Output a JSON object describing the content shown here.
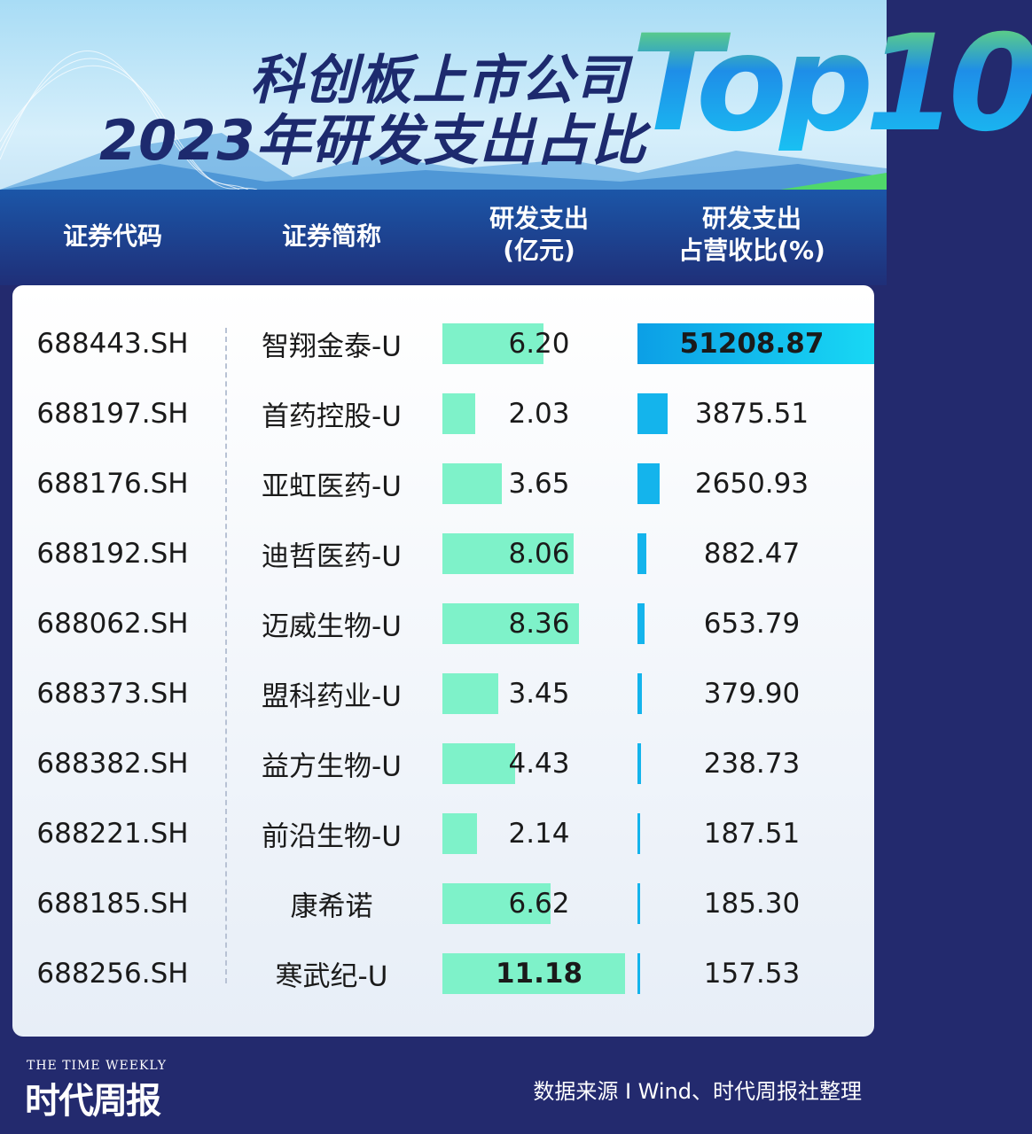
{
  "header": {
    "title_line1": "科创板上市公司",
    "title_line2": "2023年研发支出占比",
    "title_badge": "Top10"
  },
  "colors": {
    "rd_bar": "#7ef2c9",
    "ratio_bar": "#14b4ec",
    "ratio_bar_top": "#18d8f4",
    "navy": "#232a6e"
  },
  "chart_data": {
    "type": "table",
    "columns": [
      "证券代码",
      "证券简称",
      "研发支出\n(亿元)",
      "研发支出\n占营收比(%)"
    ],
    "column_labels": {
      "code": "证券代码",
      "name": "证券简称",
      "rd_line1": "研发支出",
      "rd_line2": "(亿元)",
      "ratio_line1": "研发支出",
      "ratio_line2": "占营收比(%)"
    },
    "rows": [
      {
        "code": "688443.SH",
        "name": "智翔金泰-U",
        "rd": "6.20",
        "ratio": "51208.87"
      },
      {
        "code": "688197.SH",
        "name": "首药控股-U",
        "rd": "2.03",
        "ratio": "3875.51"
      },
      {
        "code": "688176.SH",
        "name": "亚虹医药-U",
        "rd": "3.65",
        "ratio": "2650.93"
      },
      {
        "code": "688192.SH",
        "name": "迪哲医药-U",
        "rd": "8.06",
        "ratio": "882.47"
      },
      {
        "code": "688062.SH",
        "name": "迈威生物-U",
        "rd": "8.36",
        "ratio": "653.79"
      },
      {
        "code": "688373.SH",
        "name": "盟科药业-U",
        "rd": "3.45",
        "ratio": "379.90"
      },
      {
        "code": "688382.SH",
        "name": "益方生物-U",
        "rd": "4.43",
        "ratio": "238.73"
      },
      {
        "code": "688221.SH",
        "name": "前沿生物-U",
        "rd": "2.14",
        "ratio": "187.51"
      },
      {
        "code": "688185.SH",
        "name": "康希诺",
        "rd": "6.62",
        "ratio": "185.30"
      },
      {
        "code": "688256.SH",
        "name": "寒武纪-U",
        "rd": "11.18",
        "ratio": "157.53"
      }
    ]
  },
  "footer": {
    "brand_en": "THE TIME WEEKLY",
    "brand_cn": "时代周报",
    "source": "数据来源 I Wind、时代周报社整理"
  }
}
